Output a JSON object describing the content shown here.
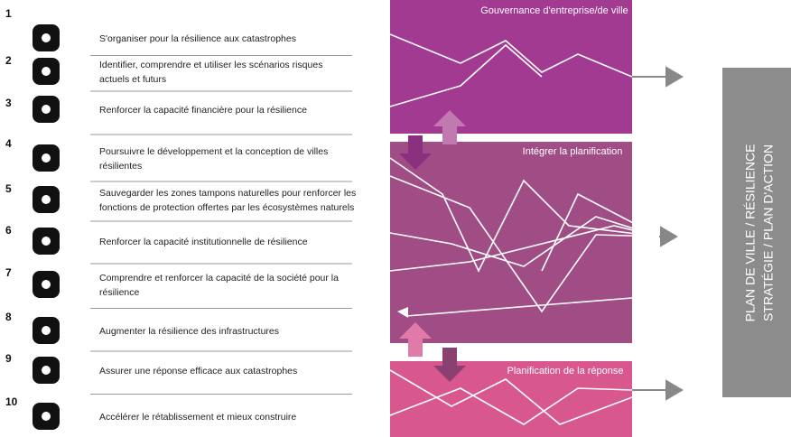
{
  "items": [
    {
      "number": "1",
      "text": [
        "S'organiser pour la résilience aux catastrophes"
      ]
    },
    {
      "number": "2",
      "text": [
        "Identifier, comprendre et utiliser les scénarios risques",
        "actuels et futurs"
      ]
    },
    {
      "number": "3",
      "text": [
        "Renforcer la capacité financière pour la résilience"
      ]
    },
    {
      "number": "4",
      "text": [
        "Poursuivre le développement et la conception de villes",
        "résilientes"
      ]
    },
    {
      "number": "5",
      "text": [
        "Sauvegarder les zones tampons naturelles pour renforcer les",
        "fonctions de protection offertes par les écosystèmes naturels"
      ]
    },
    {
      "number": "6",
      "text": [
        "Renforcer la capacité institutionnelle de résilience"
      ]
    },
    {
      "number": "7",
      "text": [
        "Comprendre et renforcer la capacité de la société pour la",
        "résilience"
      ]
    },
    {
      "number": "8",
      "text": [
        "Augmenter la résilience des infrastructures"
      ]
    },
    {
      "number": "9",
      "text": [
        "Assurer une réponse efficace aux catastrophes"
      ]
    },
    {
      "number": "10",
      "text": [
        "Accélérer le rétablissement et mieux construire"
      ]
    }
  ],
  "panels": [
    "Gouvernance d'entreprise/de ville",
    "Intégrer la planification",
    "Planification de la réponse"
  ],
  "side_box": {
    "lines": [
      "PLAN DE VILLE / RÉSILIENCE",
      "STRATÉGIE / PLAN D'ACTION"
    ]
  }
}
